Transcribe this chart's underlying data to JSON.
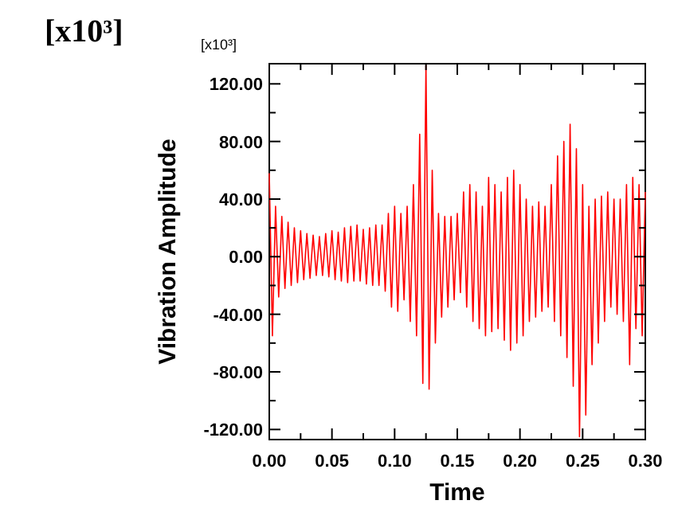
{
  "chart_data": {
    "type": "line",
    "xlabel": "Time",
    "ylabel": "Vibration Amplitude",
    "annotations": [
      "[x10³]",
      "[x10³]"
    ],
    "xlim": [
      0,
      0.3
    ],
    "ylim": [
      -127,
      134
    ],
    "xticks": [
      {
        "value": 0,
        "label": "0.00"
      },
      {
        "value": 0.025,
        "label": null
      },
      {
        "value": 0.05,
        "label": "0.05"
      },
      {
        "value": 0.075,
        "label": null
      },
      {
        "value": 0.1,
        "label": "0.10"
      },
      {
        "value": 0.125,
        "label": null
      },
      {
        "value": 0.15,
        "label": "0.15"
      },
      {
        "value": 0.175,
        "label": null
      },
      {
        "value": 0.2,
        "label": "0.20"
      },
      {
        "value": 0.225,
        "label": null
      },
      {
        "value": 0.25,
        "label": "0.25"
      },
      {
        "value": 0.275,
        "label": null
      },
      {
        "value": 0.3,
        "label": "0.30"
      }
    ],
    "yticks": [
      {
        "value": -120,
        "label": "-120.00"
      },
      {
        "value": -100,
        "label": null
      },
      {
        "value": -80,
        "label": "-80.00"
      },
      {
        "value": -60,
        "label": null
      },
      {
        "value": -40,
        "label": "-40.00"
      },
      {
        "value": -20,
        "label": null
      },
      {
        "value": 0,
        "label": "0.00"
      },
      {
        "value": 20,
        "label": null
      },
      {
        "value": 40,
        "label": "40.00"
      },
      {
        "value": 60,
        "label": null
      },
      {
        "value": 80,
        "label": "80.00"
      },
      {
        "value": 100,
        "label": null
      },
      {
        "value": 120,
        "label": "120.00"
      }
    ],
    "grid": false,
    "marker": "none",
    "line_style": "solid",
    "x": [
      0,
      0.0025,
      0.005,
      0.0075,
      0.01,
      0.0125,
      0.015,
      0.0175,
      0.02,
      0.0225,
      0.025,
      0.0275,
      0.03,
      0.0325,
      0.035,
      0.0375,
      0.04,
      0.0425,
      0.045,
      0.0475,
      0.05,
      0.0525,
      0.055,
      0.0575,
      0.06,
      0.0625,
      0.065,
      0.0675,
      0.07,
      0.0725,
      0.075,
      0.0775,
      0.08,
      0.0825,
      0.085,
      0.0875,
      0.09,
      0.0925,
      0.095,
      0.0975,
      0.1,
      0.1025,
      0.105,
      0.1075,
      0.11,
      0.1125,
      0.115,
      0.1175,
      0.12,
      0.1225,
      0.125,
      0.1275,
      0.13,
      0.1325,
      0.135,
      0.1375,
      0.14,
      0.1425,
      0.145,
      0.1475,
      0.15,
      0.1525,
      0.155,
      0.1575,
      0.16,
      0.1625,
      0.165,
      0.1675,
      0.17,
      0.1725,
      0.175,
      0.1775,
      0.18,
      0.1825,
      0.185,
      0.1875,
      0.19,
      0.1925,
      0.195,
      0.1975,
      0.2,
      0.2025,
      0.205,
      0.2075,
      0.21,
      0.2125,
      0.215,
      0.2175,
      0.22,
      0.2225,
      0.225,
      0.2275,
      0.23,
      0.2325,
      0.235,
      0.2375,
      0.24,
      0.2425,
      0.245,
      0.2475,
      0.25,
      0.2525,
      0.255,
      0.2575,
      0.26,
      0.2625,
      0.265,
      0.2675,
      0.27,
      0.2725,
      0.275,
      0.2775,
      0.28,
      0.2825,
      0.285,
      0.2875,
      0.29,
      0.2925,
      0.295,
      0.2975,
      0.3
    ],
    "series": [
      {
        "color": "#ff0000",
        "values": [
          58,
          -55,
          35,
          -28,
          28,
          -22,
          24,
          -20,
          20,
          -18,
          18,
          -16,
          16,
          -15,
          15,
          -13,
          14,
          -13,
          16,
          -14,
          18,
          -16,
          17,
          -17,
          20,
          -18,
          21,
          -17,
          22,
          -17,
          19,
          -19,
          20,
          -20,
          22,
          -20,
          22,
          -24,
          30,
          -35,
          35,
          -38,
          30,
          -30,
          35,
          -45,
          50,
          -55,
          85,
          -88,
          133,
          -92,
          60,
          -60,
          30,
          -42,
          28,
          -35,
          28,
          -30,
          30,
          -25,
          45,
          -35,
          50,
          -45,
          45,
          -50,
          35,
          -55,
          55,
          -52,
          50,
          -50,
          45,
          -58,
          55,
          -65,
          60,
          -60,
          50,
          -55,
          40,
          -45,
          35,
          -42,
          38,
          -38,
          35,
          -35,
          50,
          -45,
          70,
          -55,
          80,
          -70,
          92,
          -90,
          75,
          -125,
          50,
          -110,
          35,
          -75,
          40,
          -60,
          42,
          -45,
          45,
          -35,
          40,
          -40,
          40,
          -45,
          50,
          -75,
          55,
          -50,
          50,
          -55,
          45
        ]
      }
    ]
  }
}
